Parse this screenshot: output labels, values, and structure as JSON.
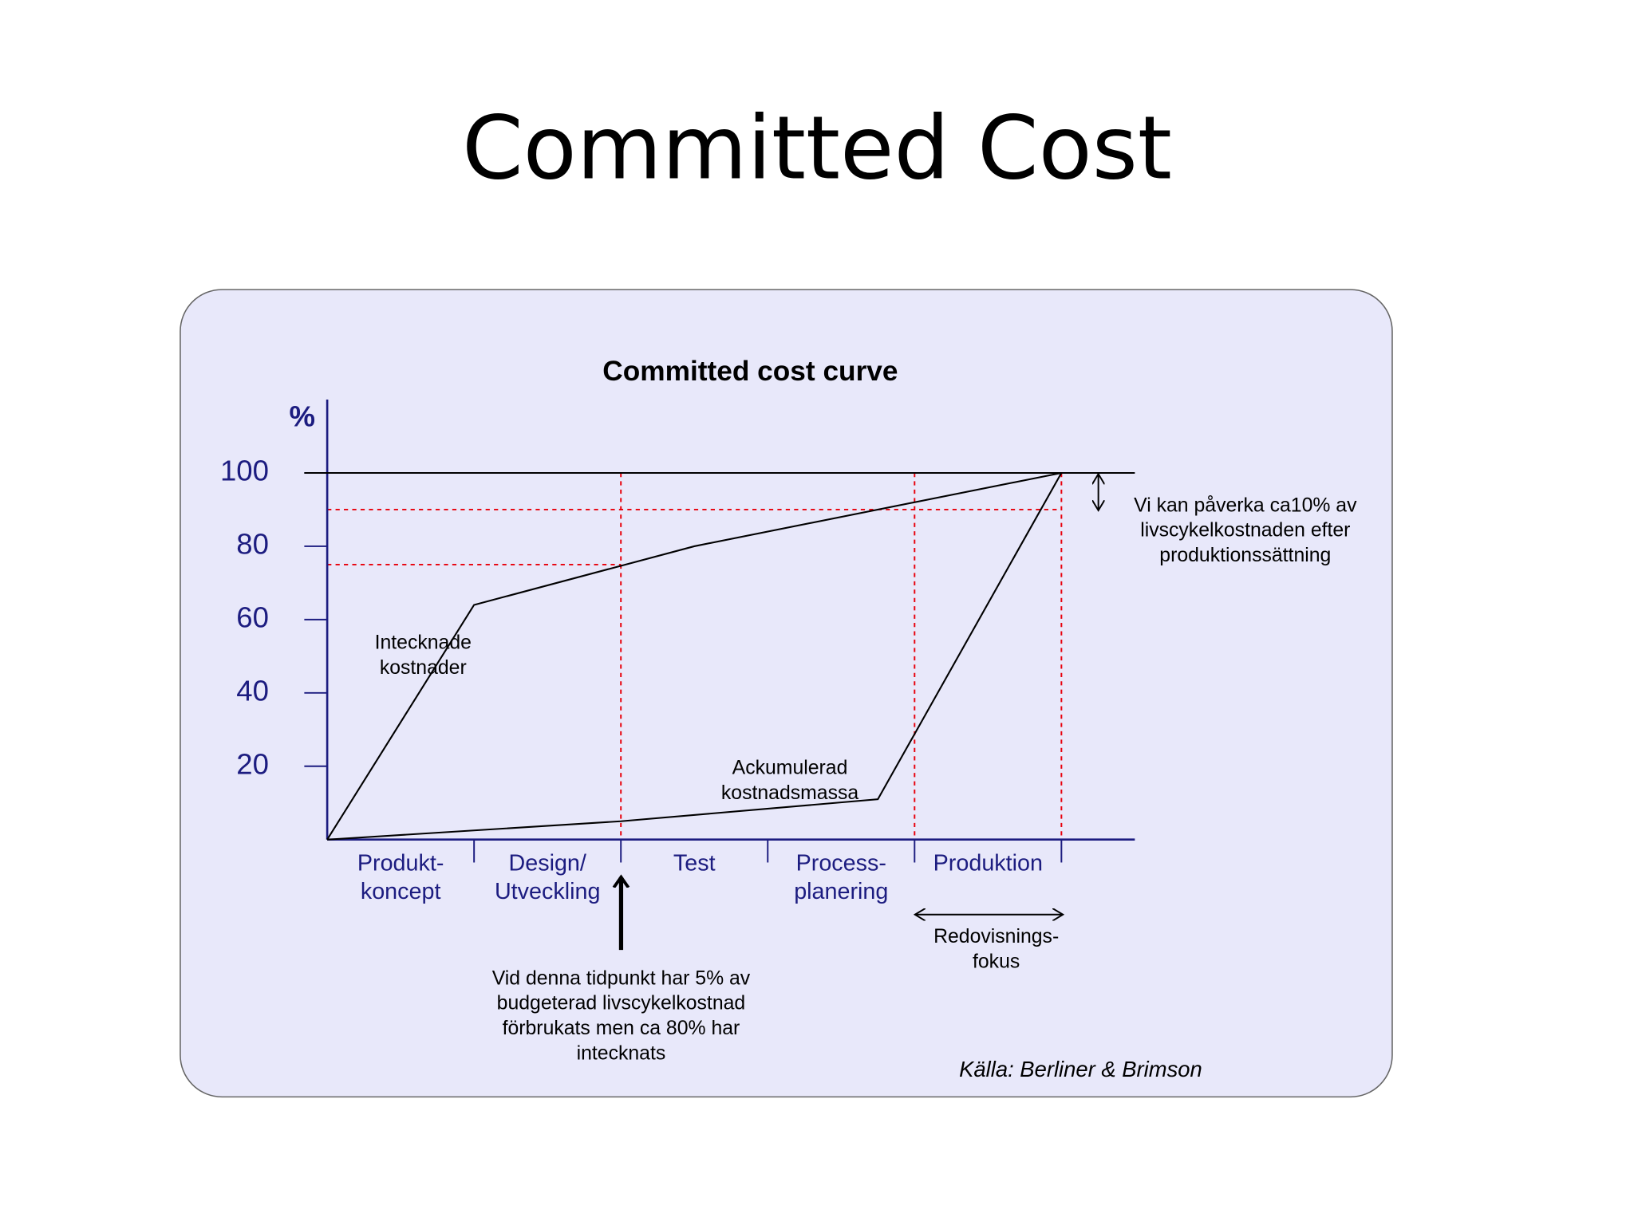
{
  "slide_title": "Committed Cost",
  "chart_data": {
    "type": "line",
    "title": "Committed cost curve",
    "y_label": "%",
    "xlim": [
      0,
      5.5
    ],
    "xticks": [
      1,
      2,
      3,
      4,
      5
    ],
    "ylim": [
      0,
      120
    ],
    "yticks": [
      20,
      40,
      60,
      80,
      100
    ],
    "categories": [
      [
        "Produkt-",
        "koncept"
      ],
      [
        "Design/",
        "Utveckling"
      ],
      [
        "Test"
      ],
      [
        "Process-",
        "planering"
      ],
      [
        "Produktion"
      ]
    ],
    "series": [
      {
        "name": [
          "Intecknade",
          "kostnader"
        ],
        "color": "#000000",
        "x": [
          0,
          1,
          2.5,
          5
        ],
        "values": [
          0,
          64,
          80,
          100
        ]
      },
      {
        "name": [
          "Ackumulerad",
          "kostnadsmassa"
        ],
        "color": "#000000",
        "x": [
          0,
          2,
          3.75,
          5
        ],
        "values": [
          0,
          5,
          11,
          100
        ]
      }
    ],
    "reference_lines": {
      "color": "#e8000b",
      "horizontal": [
        {
          "y": 75,
          "x_end": 2
        },
        {
          "y": 90,
          "x_end": 5
        }
      ],
      "vertical": [
        2,
        4,
        5
      ]
    },
    "annotations": {
      "note_right": [
        "Vi kan  påverka ca10% av",
        "livscykelkostnaden efter",
        "produktionssättning"
      ],
      "note_bottom": [
        "Vid denna tidpunkt har 5% av",
        "budgeterad livscykelkostnad",
        "förbrukats men ca 80% har",
        "intecknats"
      ],
      "focus": [
        "Redovisnings-",
        "fokus"
      ],
      "source": "Källa: Berliner & Brimson"
    }
  }
}
